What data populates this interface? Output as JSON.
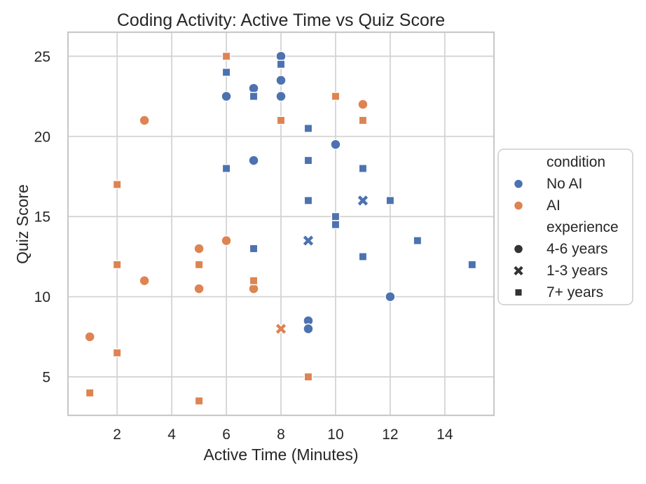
{
  "colors": {
    "no_ai": "#4c72b0",
    "ai": "#dd8452",
    "legend_marker_dark": "#333333",
    "grid": "#d4d4d4",
    "spine": "#c9c9c9",
    "text": "#262626",
    "background": "#ffffff",
    "marker_edge": "#ffffff"
  },
  "chart_data": {
    "type": "scatter",
    "title": "Coding Activity: Active Time vs Quiz Score",
    "xlabel": "Active Time (Minutes)",
    "ylabel": "Quiz Score",
    "xlim": [
      0.2,
      15.8
    ],
    "ylim": [
      2.6,
      26.5
    ],
    "xticks": [
      2,
      4,
      6,
      8,
      10,
      12,
      14
    ],
    "yticks": [
      5,
      10,
      15,
      20,
      25
    ],
    "grid": true,
    "legend": {
      "position": "right-outside",
      "groups": [
        {
          "title": "condition",
          "items": [
            {
              "label": "No AI",
              "marker": "circle",
              "color": "#4c72b0"
            },
            {
              "label": "AI",
              "marker": "circle",
              "color": "#dd8452"
            }
          ]
        },
        {
          "title": "experience",
          "items": [
            {
              "label": "4-6 years",
              "marker": "circle",
              "color": "#333333"
            },
            {
              "label": "1-3 years",
              "marker": "x",
              "color": "#333333"
            },
            {
              "label": "7+ years",
              "marker": "square",
              "color": "#333333"
            }
          ]
        }
      ]
    },
    "series": [
      {
        "condition": "AI",
        "experience": "4-6 years",
        "marker": "circle",
        "color": "#dd8452",
        "points": [
          [
            1,
            7.5
          ],
          [
            3,
            21
          ],
          [
            3,
            11
          ],
          [
            5,
            13
          ],
          [
            5,
            10.5
          ],
          [
            6,
            13.5
          ],
          [
            7,
            13
          ],
          [
            7,
            10.5
          ],
          [
            11,
            22
          ]
        ]
      },
      {
        "condition": "AI",
        "experience": "1-3 years",
        "marker": "x",
        "color": "#dd8452",
        "points": [
          [
            8,
            8
          ]
        ]
      },
      {
        "condition": "AI",
        "experience": "7+ years",
        "marker": "square",
        "color": "#dd8452",
        "points": [
          [
            1,
            4
          ],
          [
            2,
            17
          ],
          [
            2,
            12
          ],
          [
            2,
            6.5
          ],
          [
            5,
            12
          ],
          [
            5,
            3.5
          ],
          [
            6,
            25
          ],
          [
            7,
            11
          ],
          [
            8,
            21
          ],
          [
            9,
            5
          ],
          [
            10,
            22.5
          ],
          [
            11,
            21
          ]
        ]
      },
      {
        "condition": "No AI",
        "experience": "4-6 years",
        "marker": "circle",
        "color": "#4c72b0",
        "points": [
          [
            6,
            22.5
          ],
          [
            7,
            23
          ],
          [
            7,
            18.5
          ],
          [
            8,
            25
          ],
          [
            8,
            23.5
          ],
          [
            8,
            22.5
          ],
          [
            9,
            8.5
          ],
          [
            9,
            8
          ],
          [
            10,
            19.5
          ],
          [
            12,
            10
          ]
        ]
      },
      {
        "condition": "No AI",
        "experience": "1-3 years",
        "marker": "x",
        "color": "#4c72b0",
        "points": [
          [
            9,
            13.5
          ],
          [
            11,
            16
          ]
        ]
      },
      {
        "condition": "No AI",
        "experience": "7+ years",
        "marker": "square",
        "color": "#4c72b0",
        "points": [
          [
            6,
            24
          ],
          [
            6,
            18
          ],
          [
            7,
            22.5
          ],
          [
            7,
            13
          ],
          [
            8,
            24.5
          ],
          [
            9,
            20.5
          ],
          [
            9,
            18.5
          ],
          [
            9,
            16
          ],
          [
            10,
            15
          ],
          [
            10,
            14.5
          ],
          [
            11,
            18
          ],
          [
            11,
            12.5
          ],
          [
            12,
            16
          ],
          [
            13,
            13.5
          ],
          [
            15,
            12
          ]
        ]
      }
    ]
  }
}
